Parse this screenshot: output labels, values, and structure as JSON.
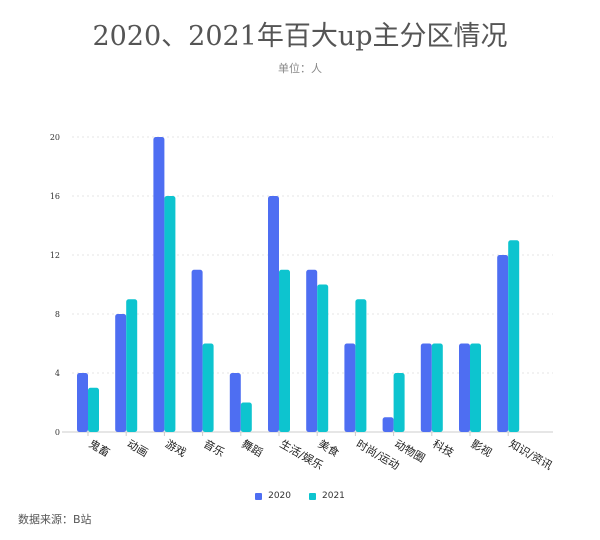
{
  "chart_data": {
    "type": "bar",
    "title": "2020、2021年百大up主分区情况",
    "subtitle": "单位：人",
    "xlabel": "",
    "ylabel": "",
    "categories": [
      "鬼畜",
      "动画",
      "游戏",
      "音乐",
      "舞蹈",
      "生活/娱乐",
      "美食",
      "时尚/运动",
      "动物圈",
      "科技",
      "影视",
      "知识/资讯"
    ],
    "series": [
      {
        "name": "2020",
        "color": "#4e6ef2",
        "values": [
          4,
          8,
          20,
          11,
          4,
          16,
          11,
          6,
          1,
          6,
          6,
          12
        ]
      },
      {
        "name": "2021",
        "color": "#0dc4cf",
        "values": [
          3,
          9,
          16,
          6,
          2,
          11,
          10,
          9,
          4,
          6,
          6,
          13
        ]
      }
    ],
    "ylim": [
      0,
      20
    ],
    "yticks": [
      "0",
      "4",
      "8",
      "12",
      "16",
      "20"
    ],
    "grid": true,
    "legend": "bottom-center"
  },
  "source": "数据来源：B站"
}
